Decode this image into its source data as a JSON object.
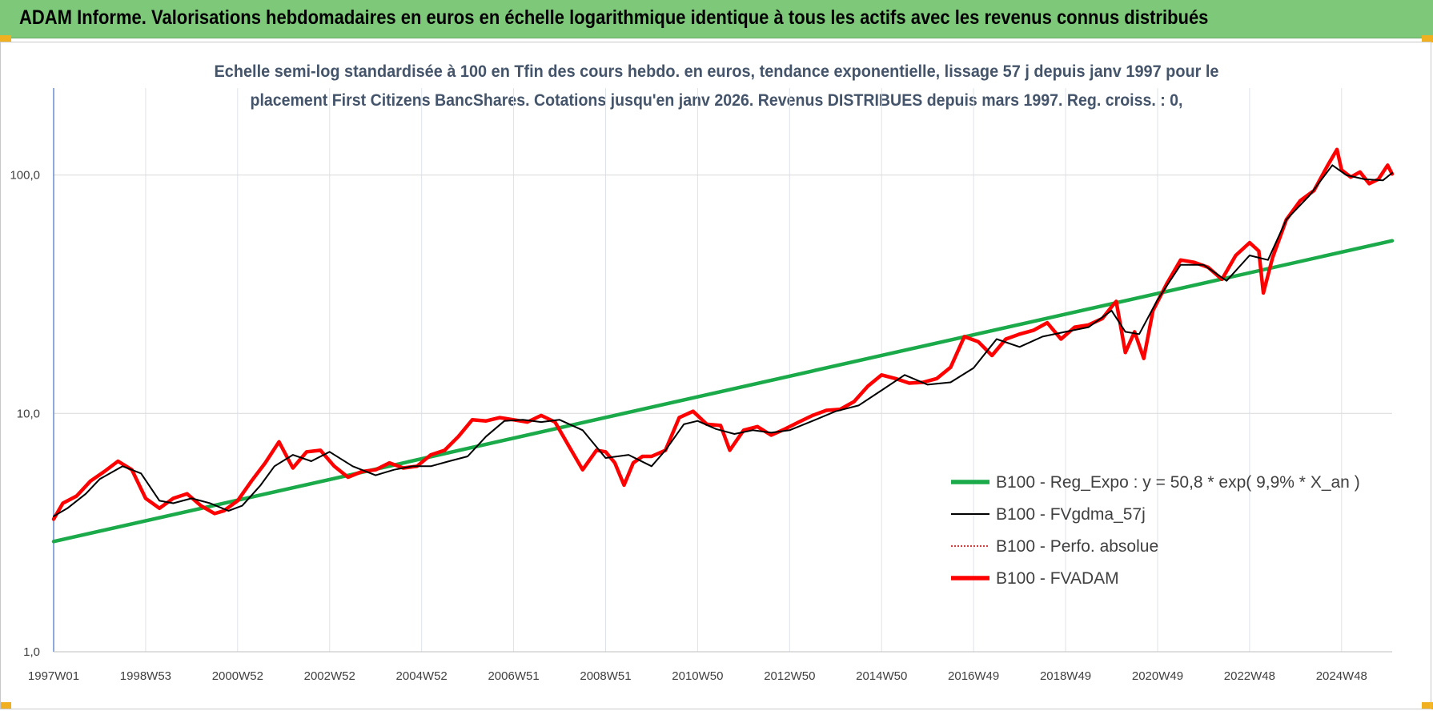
{
  "header": {
    "title": "ADAM Informe. Valorisations hebdomadaires en euros en échelle logarithmique identique à tous les actifs avec les revenus connus distribués",
    "background_color": "#7ec87a"
  },
  "chart_data": {
    "type": "line",
    "subtitle_lines": [
      "Echelle semi-log standardisée à 100 en Tfin des cours hebdo. en euros, tendance exponentielle, lissage 57 j depuis janv 1997 pour le",
      "placement First Citizens BancShares. Cotations jusqu'en janv 2026. Revenus DISTRIBUES depuis mars 1997. Reg. croiss. : 0,"
    ],
    "y_scale": "log",
    "ylim": [
      1,
      170
    ],
    "y_ticks": [
      {
        "value": 1,
        "label": "1,0"
      },
      {
        "value": 10,
        "label": "10,0"
      },
      {
        "value": 100,
        "label": "100,0"
      }
    ],
    "xlim": [
      1997.0,
      2026.1
    ],
    "x_ticks": [
      {
        "value": 1997.0,
        "label": "1997W01"
      },
      {
        "value": 1999.0,
        "label": "1998W53"
      },
      {
        "value": 2001.0,
        "label": "2000W52"
      },
      {
        "value": 2003.0,
        "label": "2002W52"
      },
      {
        "value": 2005.0,
        "label": "2004W52"
      },
      {
        "value": 2007.0,
        "label": "2006W51"
      },
      {
        "value": 2009.0,
        "label": "2008W51"
      },
      {
        "value": 2011.0,
        "label": "2010W50"
      },
      {
        "value": 2013.0,
        "label": "2012W50"
      },
      {
        "value": 2015.0,
        "label": "2014W50"
      },
      {
        "value": 2017.0,
        "label": "2016W49"
      },
      {
        "value": 2019.0,
        "label": "2018W49"
      },
      {
        "value": 2021.0,
        "label": "2020W49"
      },
      {
        "value": 2023.0,
        "label": "2022W48"
      },
      {
        "value": 2025.0,
        "label": "2024W48"
      }
    ],
    "grid": true,
    "legend_position": "bottom-right",
    "series": [
      {
        "name": "B100 - Reg_Expo : y = 50,8 * exp( 9,9% *  X_an )",
        "color": "#1aaa4a",
        "style": "solid-thick",
        "x": [
          1997.0,
          2026.1
        ],
        "y": [
          2.9,
          53.0
        ]
      },
      {
        "name": "B100 - FVgdma_57j",
        "color": "#000000",
        "style": "solid-thin",
        "x": [
          1997.0,
          1997.3,
          1997.7,
          1998.0,
          1998.5,
          1998.9,
          1999.3,
          1999.6,
          2000.0,
          2000.4,
          2000.8,
          2001.1,
          2001.5,
          2001.8,
          2002.2,
          2002.6,
          2003.0,
          2003.5,
          2004.0,
          2004.4,
          2004.8,
          2005.2,
          2005.6,
          2006.0,
          2006.4,
          2006.8,
          2007.2,
          2007.6,
          2008.0,
          2008.5,
          2009.0,
          2009.5,
          2010.0,
          2010.3,
          2010.7,
          2011.0,
          2011.4,
          2011.8,
          2012.2,
          2012.6,
          2013.0,
          2013.5,
          2014.0,
          2014.5,
          2015.0,
          2015.5,
          2016.0,
          2016.5,
          2017.0,
          2017.5,
          2018.0,
          2018.5,
          2019.0,
          2019.5,
          2020.0,
          2020.3,
          2020.6,
          2021.0,
          2021.5,
          2022.0,
          2022.5,
          2023.0,
          2023.4,
          2023.8,
          2024.3,
          2024.8,
          2025.1,
          2025.5,
          2025.9,
          2026.1
        ],
        "y": [
          3.7,
          4.0,
          4.6,
          5.3,
          6.0,
          5.6,
          4.3,
          4.2,
          4.4,
          4.2,
          3.9,
          4.1,
          5.0,
          6.0,
          6.7,
          6.3,
          6.9,
          6.0,
          5.5,
          5.8,
          6.0,
          6.0,
          6.3,
          6.6,
          8.0,
          9.3,
          9.4,
          9.2,
          9.4,
          8.5,
          6.5,
          6.7,
          6.0,
          7.0,
          9.0,
          9.3,
          8.6,
          8.2,
          8.5,
          8.3,
          8.5,
          9.3,
          10.2,
          10.8,
          12.5,
          14.5,
          13.2,
          13.5,
          15.5,
          20.5,
          19.0,
          21.0,
          22.0,
          23.0,
          27.0,
          22.0,
          21.5,
          30.0,
          42.0,
          42.0,
          36.0,
          46.0,
          44.0,
          65.0,
          82.0,
          110.0,
          100.0,
          96.0,
          95.0,
          102.0
        ]
      },
      {
        "name": "B100 - Perfo. absolue",
        "color": "#c00000",
        "style": "dotted",
        "x": [],
        "y": []
      },
      {
        "name": "B100 - FVADAM",
        "color": "#ff0000",
        "style": "solid-thick",
        "x": [
          1997.0,
          1997.2,
          1997.5,
          1997.8,
          1998.1,
          1998.4,
          1998.7,
          1999.0,
          1999.3,
          1999.6,
          1999.9,
          2000.2,
          2000.5,
          2000.7,
          2001.0,
          2001.3,
          2001.6,
          2001.9,
          2002.2,
          2002.5,
          2002.8,
          2003.1,
          2003.4,
          2003.7,
          2004.0,
          2004.3,
          2004.6,
          2004.9,
          2005.2,
          2005.5,
          2005.8,
          2006.1,
          2006.4,
          2006.7,
          2007.0,
          2007.3,
          2007.6,
          2007.9,
          2008.2,
          2008.5,
          2008.8,
          2009.0,
          2009.2,
          2009.4,
          2009.6,
          2009.8,
          2010.0,
          2010.3,
          2010.6,
          2010.9,
          2011.2,
          2011.5,
          2011.7,
          2012.0,
          2012.3,
          2012.6,
          2012.9,
          2013.2,
          2013.5,
          2013.8,
          2014.1,
          2014.4,
          2014.7,
          2015.0,
          2015.3,
          2015.6,
          2015.9,
          2016.2,
          2016.5,
          2016.8,
          2017.1,
          2017.4,
          2017.7,
          2018.0,
          2018.3,
          2018.6,
          2018.9,
          2019.2,
          2019.5,
          2019.8,
          2020.0,
          2020.1,
          2020.3,
          2020.5,
          2020.7,
          2020.9,
          2021.2,
          2021.5,
          2021.8,
          2022.1,
          2022.4,
          2022.7,
          2023.0,
          2023.2,
          2023.3,
          2023.5,
          2023.8,
          2024.1,
          2024.4,
          2024.7,
          2024.9,
          2025.0,
          2025.2,
          2025.4,
          2025.6,
          2025.8,
          2026.0,
          2026.1
        ],
        "y": [
          3.6,
          4.2,
          4.5,
          5.2,
          5.7,
          6.3,
          5.8,
          4.4,
          4.0,
          4.4,
          4.6,
          4.1,
          3.8,
          3.9,
          4.3,
          5.2,
          6.2,
          7.6,
          5.9,
          6.9,
          7.0,
          6.0,
          5.4,
          5.7,
          5.8,
          6.2,
          5.9,
          6.0,
          6.7,
          7.0,
          8.0,
          9.4,
          9.3,
          9.6,
          9.4,
          9.2,
          9.8,
          9.2,
          7.3,
          5.8,
          7.0,
          6.9,
          6.2,
          5.0,
          6.2,
          6.6,
          6.6,
          7.0,
          9.6,
          10.2,
          9.0,
          8.9,
          7.0,
          8.5,
          8.8,
          8.1,
          8.6,
          9.2,
          9.8,
          10.3,
          10.4,
          11.2,
          13.0,
          14.5,
          14.0,
          13.4,
          13.5,
          14.0,
          15.6,
          21.0,
          20.0,
          17.5,
          20.5,
          21.5,
          22.3,
          24.0,
          20.5,
          23.0,
          23.5,
          25.0,
          28.0,
          29.5,
          18.0,
          22.0,
          17.0,
          27.0,
          35.0,
          44.0,
          43.0,
          41.0,
          36.5,
          46.0,
          52.0,
          48.0,
          32.0,
          45.0,
          65.0,
          78.0,
          86.0,
          110.0,
          128.0,
          105.0,
          98.0,
          103.0,
          92.0,
          96.0,
          110.0,
          101.0
        ]
      }
    ]
  }
}
